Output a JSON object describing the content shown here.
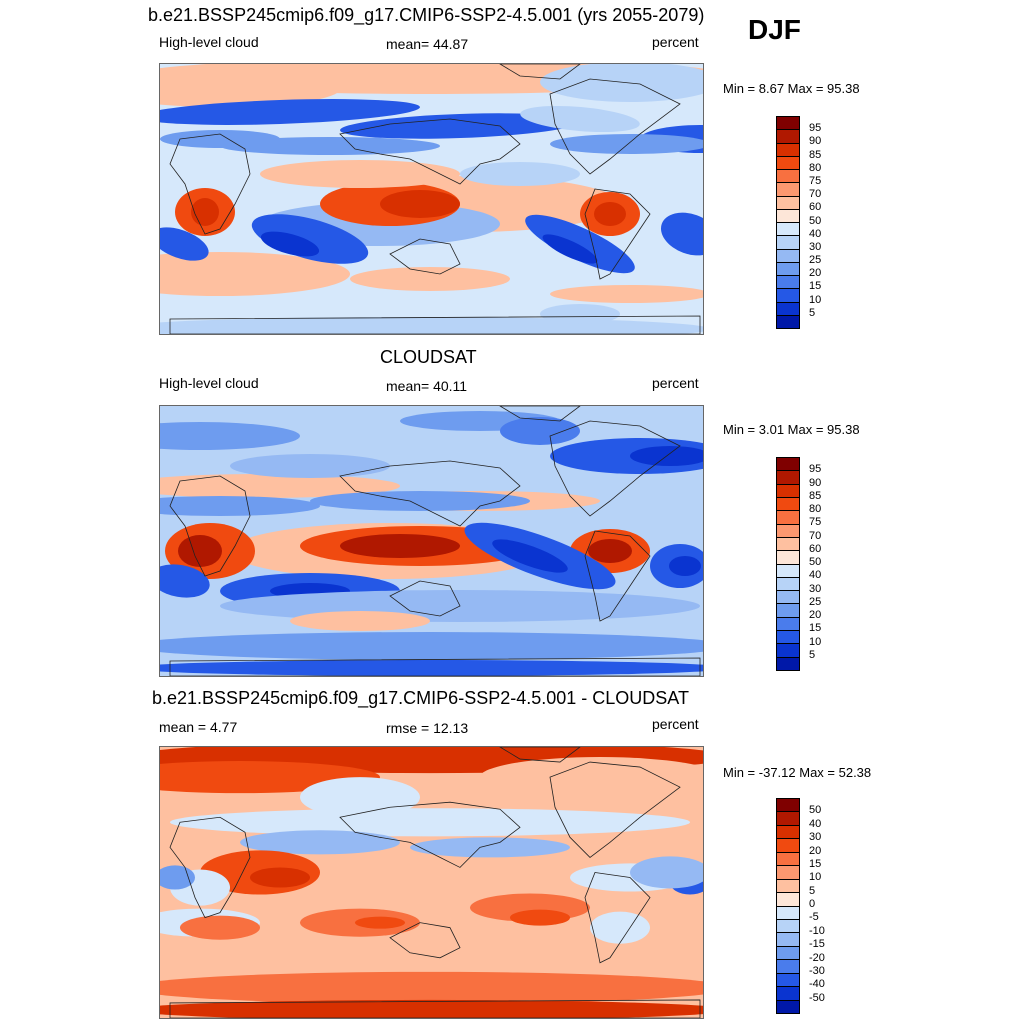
{
  "season": "DJF",
  "colors": {
    "pos": [
      "#7f0000",
      "#b01800",
      "#d83000",
      "#f04a10",
      "#f87040",
      "#fc9870",
      "#fec0a0",
      "#fde6d8"
    ],
    "neg": [
      "#d6e8fb",
      "#b7d3f7",
      "#95b9f3",
      "#6e9cef",
      "#4a7cec",
      "#2558e6",
      "#0a34d0",
      "#0018a8",
      "#000080"
    ]
  },
  "panels": [
    {
      "id": "model",
      "title": "b.e21.BSSP245cmip6.f09_g17.CMIP6-SSP2-4.5.001 (yrs 2055-2079)",
      "left": "High-level cloud",
      "center": "mean=  44.87",
      "right": "percent",
      "minmax": "Min =   8.67 Max =  95.38",
      "ticks": [
        "95",
        "90",
        "85",
        "80",
        "75",
        "70",
        "60",
        "50",
        "40",
        "30",
        "25",
        "20",
        "15",
        "10",
        "5"
      ]
    },
    {
      "id": "obs",
      "title": "CLOUDSAT",
      "left": "High-level cloud",
      "center": "mean=  40.11",
      "right": "percent",
      "minmax": "Min =   3.01 Max =  95.38",
      "ticks": [
        "95",
        "90",
        "85",
        "80",
        "75",
        "70",
        "60",
        "50",
        "40",
        "30",
        "25",
        "20",
        "15",
        "10",
        "5"
      ]
    },
    {
      "id": "diff",
      "title": "b.e21.BSSP245cmip6.f09_g17.CMIP6-SSP2-4.5.001 - CLOUDSAT",
      "left": "mean =   4.77",
      "center": "rmse =  12.13",
      "right": "percent",
      "minmax": "Min = -37.12 Max =  52.38",
      "ticks": [
        "50",
        "40",
        "30",
        "20",
        "15",
        "10",
        "5",
        "0",
        "-5",
        "-10",
        "-15",
        "-20",
        "-30",
        "-40",
        "-50"
      ]
    }
  ]
}
